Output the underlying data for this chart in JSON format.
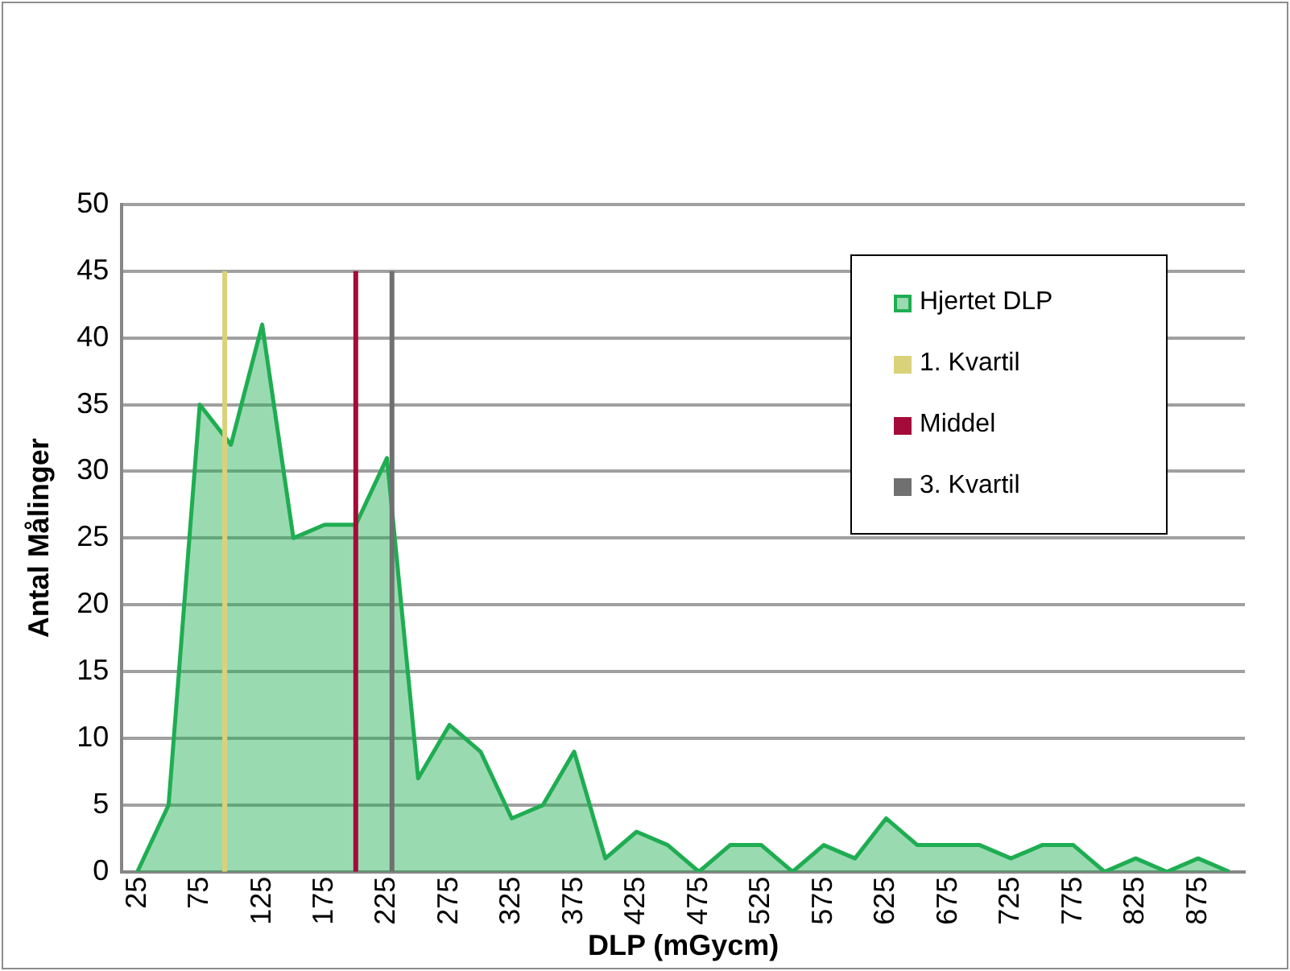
{
  "chart_data": {
    "type": "area",
    "xlabel": "DLP (mGycm)",
    "ylabel": "Antal Målinger",
    "x": [
      25,
      50,
      75,
      100,
      125,
      150,
      175,
      200,
      225,
      250,
      275,
      300,
      325,
      350,
      375,
      400,
      425,
      450,
      475,
      500,
      525,
      550,
      575,
      600,
      625,
      650,
      675,
      700,
      725,
      750,
      775,
      800,
      825,
      850,
      875,
      900
    ],
    "series": [
      {
        "name": "Hjertet DLP",
        "type": "area",
        "color": "#1fad52",
        "values": [
          0,
          5,
          35,
          32,
          41,
          25,
          26,
          26,
          31,
          7,
          11,
          9,
          4,
          5,
          9,
          1,
          3,
          2,
          0,
          2,
          2,
          0,
          2,
          1,
          4,
          2,
          2,
          2,
          1,
          2,
          2,
          0,
          1,
          0,
          1,
          0
        ]
      },
      {
        "name": "1. Kvartil",
        "type": "line",
        "color": "#d9d27a",
        "x": [
          95,
          95
        ],
        "values": [
          0,
          45
        ]
      },
      {
        "name": "Middel",
        "type": "line",
        "color": "#a50b3a",
        "x": [
          200,
          200
        ],
        "values": [
          0,
          45
        ]
      },
      {
        "name": "3. Kvartil",
        "type": "line",
        "color": "#707070",
        "x": [
          229,
          229
        ],
        "values": [
          0,
          45
        ]
      }
    ],
    "xlim": [
      12.5,
      912.5
    ],
    "xticks": [
      25,
      75,
      125,
      175,
      225,
      275,
      325,
      375,
      425,
      475,
      525,
      575,
      625,
      675,
      725,
      775,
      825,
      875
    ],
    "ylim": [
      0,
      50
    ],
    "yticks": [
      0,
      5,
      10,
      15,
      20,
      25,
      30,
      35,
      40,
      45,
      50
    ],
    "grid": "y",
    "legend": "top right"
  }
}
